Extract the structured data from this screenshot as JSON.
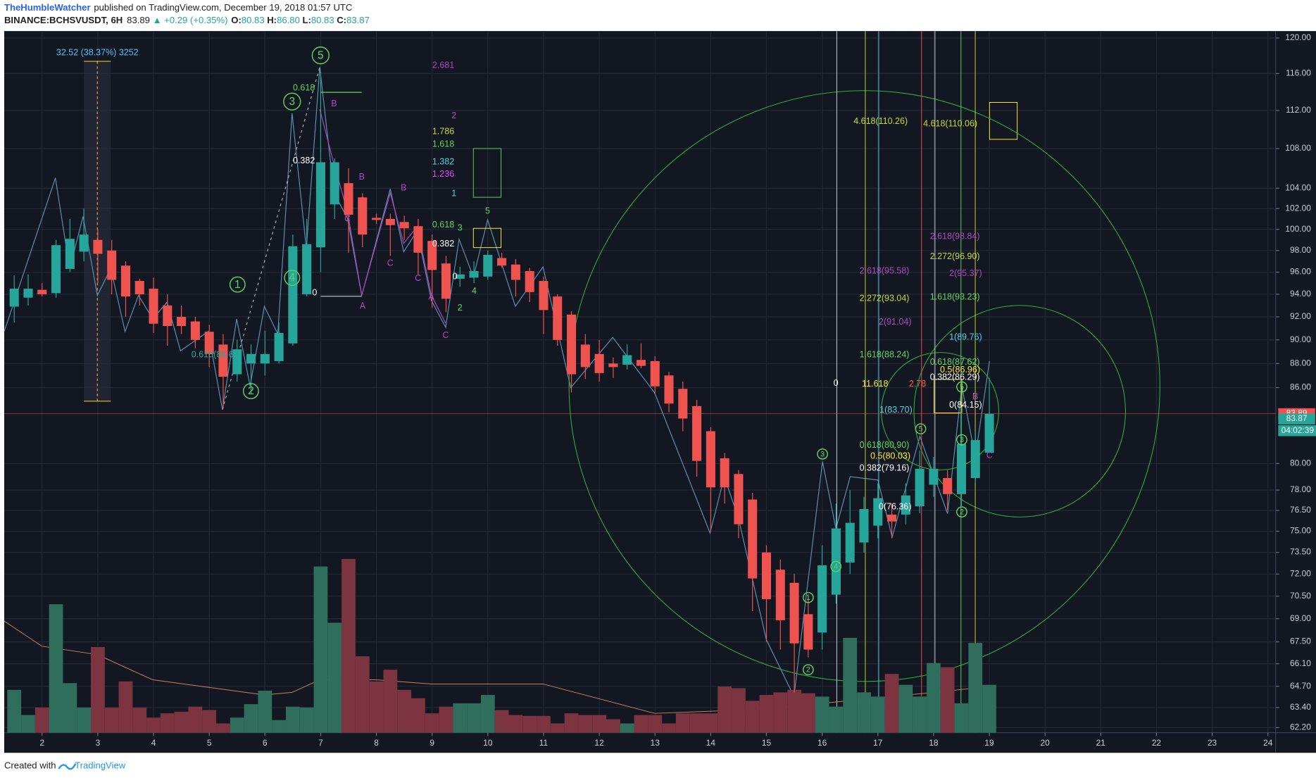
{
  "header": {
    "author": "TheHumbleWatcher",
    "published": "published on TradingView.com, December 19, 2018 01:57 UTC",
    "symbol": "BINANCE:BCHSVUSDT, 6H",
    "last": "83.89",
    "arrow": "▲",
    "change": "+0.29 (+0.35%)",
    "ohlc": [
      {
        "label": "O:",
        "value": "80.83"
      },
      {
        "label": "H:",
        "value": "86.80"
      },
      {
        "label": "L:",
        "value": "80.83"
      },
      {
        "label": "C:",
        "value": "83.87"
      }
    ]
  },
  "footer": {
    "created": "Created with",
    "brand": "TradingView"
  },
  "chart_data": {
    "type": "candlestick",
    "x": [
      1.5,
      1.75,
      2,
      2.25,
      2.5,
      2.75,
      3,
      3.25,
      3.5,
      3.75,
      4,
      4.25,
      4.5,
      4.75,
      5,
      5.25,
      5.5,
      5.75,
      6,
      6.25,
      6.5,
      6.75,
      7,
      7.25,
      7.5,
      7.75,
      8,
      8.25,
      8.5,
      8.75,
      9,
      9.25,
      9.5,
      9.75,
      10,
      10.25,
      10.5,
      10.75,
      11,
      11.25,
      11.5,
      11.75,
      12,
      12.25,
      12.5,
      12.75,
      13,
      13.25,
      13.5,
      13.75,
      14,
      14.25,
      14.5,
      14.75,
      15,
      15.25,
      15.5,
      15.75,
      16,
      16.25,
      16.5,
      16.75,
      17,
      17.25,
      17.5,
      17.75,
      18,
      18.25,
      18.5,
      18.75,
      19
    ],
    "open": [
      92.9,
      93.7,
      94.4,
      94.1,
      96.3,
      97.9,
      99.0,
      98.0,
      96.6,
      95.2,
      94.5,
      93.0,
      92.0,
      91.6,
      90.7,
      89.6,
      87.1,
      88.0,
      88.0,
      88.2,
      89.7,
      94.0,
      98.3,
      102.4,
      104.5,
      103.1,
      101.1,
      101.0,
      100.7,
      100.3,
      98.9,
      96.8,
      95.4,
      95.5,
      95.6,
      97.3,
      96.7,
      96.1,
      95.2,
      93.8,
      92.2,
      89.6,
      88.8,
      88.0,
      87.9,
      88.3,
      88.2,
      87.0,
      85.9,
      84.5,
      82.5,
      80.4,
      79.2,
      77.3,
      73.5,
      72.3,
      71.4,
      69.3,
      68.1,
      70.6,
      72.8,
      74.2,
      75.4,
      76.2,
      76.2,
      76.8,
      78.4,
      78.9,
      77.7,
      78.9,
      80.83
    ],
    "high": [
      95.7,
      95.8,
      95,
      99,
      101,
      102,
      100,
      99,
      97,
      95.4,
      95.5,
      94,
      93,
      92,
      91.3,
      90.5,
      90,
      89.6,
      90.8,
      91.5,
      99.5,
      101,
      116.2,
      107,
      106,
      103.5,
      101.5,
      101.5,
      101.3,
      101,
      99.5,
      97.5,
      96.5,
      97,
      98,
      97.8,
      97.2,
      96.4,
      95.6,
      94,
      92.5,
      90.5,
      90,
      88.5,
      89.6,
      89.7,
      88.6,
      87.3,
      86.5,
      85,
      82.8,
      80.8,
      79.5,
      77.8,
      74,
      73,
      72,
      70.5,
      74,
      77,
      78,
      77.5,
      78.5,
      77,
      78.5,
      81,
      80.5,
      79.5,
      84,
      82.5,
      86.8
    ],
    "low": [
      91.5,
      93,
      93.8,
      93.7,
      96,
      97,
      95,
      94,
      92,
      93,
      90.6,
      89.5,
      90.5,
      89.3,
      87.7,
      84.3,
      86.5,
      85.5,
      87,
      88,
      89.5,
      93.8,
      96,
      101,
      97.8,
      98.3,
      100.5,
      97.5,
      99,
      95.8,
      92.8,
      92.4,
      94.7,
      95,
      95.3,
      96.4,
      93.8,
      93.3,
      90.5,
      89.5,
      85.6,
      86.7,
      86.5,
      86.8,
      87.5,
      87.6,
      85.5,
      84,
      82.5,
      79,
      75,
      77,
      74.5,
      69.5,
      67.5,
      67,
      64.3,
      66.5,
      67,
      70,
      72,
      73.5,
      74.5,
      74.5,
      75.5,
      76.3,
      77.5,
      76.5,
      76.8,
      78.5,
      80.83
    ],
    "close": [
      94.5,
      94.5,
      94.0,
      98.5,
      99.1,
      99.5,
      97.7,
      95.3,
      93.8,
      94.0,
      91.4,
      91.2,
      91.2,
      90.0,
      88.8,
      86.9,
      89.2,
      88.8,
      88.8,
      90.6,
      98.4,
      98.6,
      106.6,
      106.6,
      101.4,
      99.5,
      100.9,
      100.4,
      100.1,
      97.8,
      96.2,
      93.6,
      95.8,
      96.1,
      97.6,
      96.6,
      95.3,
      94.2,
      92.6,
      90.0,
      87.1,
      87.7,
      87.2,
      87.7,
      88.7,
      87.8,
      86.1,
      84.7,
      83.5,
      80.2,
      78.2,
      78.2,
      75.5,
      71.7,
      70.3,
      68.9,
      67.4,
      67.0,
      72.6,
      75.2,
      75.6,
      76.6,
      77.4,
      75.7,
      77.6,
      79.6,
      79.6,
      77.7,
      81.5,
      81.8,
      83.87
    ],
    "volume": [
      51,
      21,
      30,
      153,
      59,
      30,
      102,
      30,
      61,
      30,
      18,
      23,
      25,
      31,
      27,
      11,
      18,
      34,
      50,
      15,
      31,
      30,
      198,
      131,
      207,
      91,
      61,
      75,
      51,
      41,
      23,
      31,
      35,
      35,
      45,
      27,
      21,
      20,
      20,
      11,
      23,
      21,
      21,
      16,
      11,
      21,
      21,
      11,
      23,
      23,
      23,
      55,
      53,
      38,
      45,
      48,
      51,
      47,
      43,
      31,
      113,
      48,
      43,
      70,
      57,
      43,
      83,
      78,
      35,
      107,
      57
    ],
    "up_color": "#26a69a",
    "down_color": "#ef5350",
    "volume_up_color": "#2f6e5c",
    "volume_down_color": "#7c3440",
    "log_scale": true,
    "grid": true,
    "ylim": [
      61.9,
      120.7
    ],
    "yticks": [
      {
        "value": 62.2,
        "label": "62.20"
      },
      {
        "value": 63.4,
        "label": "63.40"
      },
      {
        "value": 64.7,
        "label": "64.70"
      },
      {
        "value": 66.1,
        "label": "66.10"
      },
      {
        "value": 67.5,
        "label": "67.50"
      },
      {
        "value": 69,
        "label": "69.00"
      },
      {
        "value": 70.5,
        "label": "70.50"
      },
      {
        "value": 72,
        "label": "72.00"
      },
      {
        "value": 73.5,
        "label": "73.50"
      },
      {
        "value": 75,
        "label": "75.00"
      },
      {
        "value": 76.5,
        "label": "76.50"
      },
      {
        "value": 78,
        "label": "78.00"
      },
      {
        "value": 80,
        "label": "80.00"
      },
      {
        "value": 86,
        "label": "86.00"
      },
      {
        "value": 88,
        "label": "88.00"
      },
      {
        "value": 90,
        "label": "90.00"
      },
      {
        "value": 92,
        "label": "92.00"
      },
      {
        "value": 94,
        "label": "94.00"
      },
      {
        "value": 96,
        "label": "96.00"
      },
      {
        "value": 98,
        "label": "98.00"
      },
      {
        "value": 100,
        "label": "100.00"
      },
      {
        "value": 102,
        "label": "102.00"
      },
      {
        "value": 104,
        "label": "104.00"
      },
      {
        "value": 108,
        "label": "108.00"
      },
      {
        "value": 112,
        "label": "112.00"
      },
      {
        "value": 116,
        "label": "116.00"
      },
      {
        "value": 120,
        "label": "120.00"
      }
    ],
    "xlim": [
      1.32,
      24.14
    ],
    "xticks": [
      2,
      3,
      4,
      5,
      6,
      7,
      8,
      9,
      10,
      11,
      12,
      13,
      14,
      15,
      16,
      17,
      18,
      19,
      20,
      21,
      22,
      23,
      24
    ],
    "price_tags": [
      {
        "value": 83.89,
        "color": "#ef5350"
      },
      {
        "value": 83.87,
        "color": "#26a69a"
      }
    ],
    "countdown": "04:02:39",
    "annotations": [
      {
        "text": "32.52 (38.37%) 3252",
        "color": "#4fc3f7"
      },
      {
        "text": "0.618",
        "color": "#5fd35f"
      },
      {
        "text": "0.382",
        "color": "#ffffff"
      },
      {
        "text": "0",
        "color": "#ffffff"
      },
      {
        "text": "0.618(88.65)",
        "color": "#26a69a"
      },
      {
        "text": "2.681",
        "color": "#ab47bc"
      },
      {
        "text": "2",
        "color": "#ab47bc"
      },
      {
        "text": "1.786",
        "color": "#c6d63a"
      },
      {
        "text": "1.618",
        "color": "#5fd35f"
      },
      {
        "text": "1.382",
        "color": "#4dd0e1"
      },
      {
        "text": "1.236",
        "color": "#e040fb"
      },
      {
        "text": "1",
        "color": "#4dd0e1"
      },
      {
        "text": "0.618",
        "color": "#5fd35f"
      },
      {
        "text": "0.382",
        "color": "#ffffff"
      },
      {
        "text": "0",
        "color": "#ffffff"
      },
      {
        "text": "4.618(110.26)",
        "color": "#c6d63a"
      },
      {
        "text": "4.618(110.06)",
        "color": "#c6d63a"
      },
      {
        "text": "2.618(98.84)",
        "color": "#ab47bc"
      },
      {
        "text": "2.272(96.90)",
        "color": "#c6d63a"
      },
      {
        "text": "2.618(95.58)",
        "color": "#ab47bc"
      },
      {
        "text": "2(95.37)",
        "color": "#ab47bc"
      },
      {
        "text": "2.272(93.04)",
        "color": "#c6d63a"
      },
      {
        "text": "1.618(93.23)",
        "color": "#5fd35f"
      },
      {
        "text": "2(91.04)",
        "color": "#ab47bc"
      },
      {
        "text": "1(89.76)",
        "color": "#4dd0e1"
      },
      {
        "text": "1.618(88.24)",
        "color": "#5fd35f"
      },
      {
        "text": "0.618(87.62)",
        "color": "#5fd35f"
      },
      {
        "text": "0.5(86.96)",
        "color": "#ffeb3b"
      },
      {
        "text": "0.382(86.29)",
        "color": "#ffffff"
      },
      {
        "text": "0",
        "color": "#ffffff"
      },
      {
        "text": "11.618",
        "color": "#ffeb3b"
      },
      {
        "text": "2.78",
        "color": "#ef5350"
      },
      {
        "text": "0(84.15)",
        "color": "#ffffff"
      },
      {
        "text": "1(83.70)",
        "color": "#4dd0e1"
      },
      {
        "text": "0.618(80.90)",
        "color": "#5fd35f"
      },
      {
        "text": "0.5(80.03)",
        "color": "#ffeb3b"
      },
      {
        "text": "0.382(79.16)",
        "color": "#ffffff"
      },
      {
        "text": "0(76.36)",
        "color": "#ffffff"
      },
      {
        "text": "5",
        "color": "#5fd35f",
        "circled": true
      },
      {
        "text": "3",
        "color": "#5fd35f",
        "circled": true
      },
      {
        "text": "1",
        "color": "#5fd35f",
        "circled": true
      },
      {
        "text": "2",
        "color": "#5fd35f",
        "circled": true
      },
      {
        "text": "4",
        "color": "#5fd35f",
        "circled": true
      },
      {
        "text": "3",
        "color": "#5fd35f",
        "circled": true
      },
      {
        "text": "4",
        "color": "#5fd35f",
        "circled": true
      },
      {
        "text": "1",
        "color": "#5fd35f",
        "circled": true
      },
      {
        "text": "2",
        "color": "#5fd35f",
        "circled": true
      },
      {
        "text": "5",
        "color": "#5fd35f",
        "circled": true
      },
      {
        "text": "3",
        "color": "#5fd35f",
        "circled": true
      },
      {
        "text": "2",
        "color": "#5fd35f",
        "circled": true
      },
      {
        "text": "5",
        "color": "#5fd35f",
        "circled": true
      },
      {
        "text": "B",
        "color": "#ab47bc"
      },
      {
        "text": "B",
        "color": "#ab47bc"
      },
      {
        "text": "C",
        "color": "#ab47bc"
      },
      {
        "text": "A",
        "color": "#ab47bc"
      },
      {
        "text": "C",
        "color": "#ab47bc"
      },
      {
        "text": "B",
        "color": "#ab47bc"
      },
      {
        "text": "C",
        "color": "#ab47bc"
      },
      {
        "text": "A",
        "color": "#ab47bc"
      },
      {
        "text": "C",
        "color": "#ab47bc"
      },
      {
        "text": "B",
        "color": "#ab47bc"
      },
      {
        "text": "C",
        "color": "#ab47bc"
      },
      {
        "text": "5",
        "color": "#5fd35f"
      },
      {
        "text": "3",
        "color": "#5fd35f"
      },
      {
        "text": "4",
        "color": "#5fd35f"
      },
      {
        "text": "2",
        "color": "#5fd35f"
      }
    ]
  }
}
